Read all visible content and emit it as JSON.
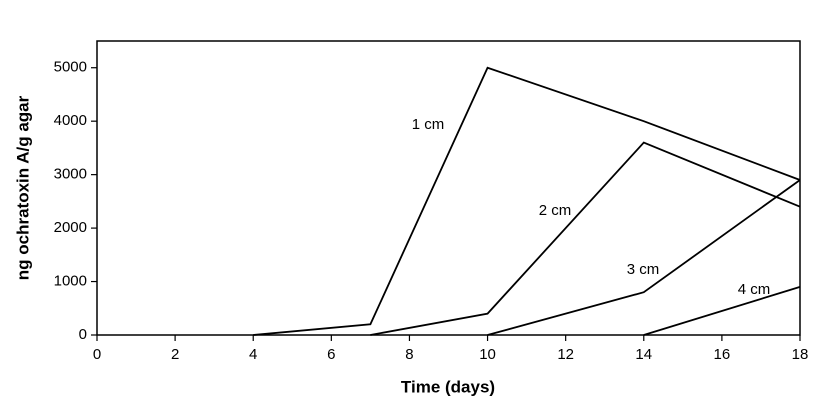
{
  "chart_data": {
    "type": "line",
    "x_label": "Time (days)",
    "y_label": "ng ochratoxin A/g agar",
    "xlim": [
      0,
      18
    ],
    "xticks": [
      0,
      2,
      4,
      6,
      8,
      10,
      12,
      14,
      16,
      18
    ],
    "ylim": [
      0,
      5500
    ],
    "yticks": [
      0,
      1000,
      2000,
      3000,
      4000,
      5000
    ],
    "series": [
      {
        "name": "1 cm",
        "color": "#000000",
        "x": [
          4,
          7,
          10,
          14,
          18
        ],
        "values": [
          0,
          200,
          5000,
          4000,
          2900
        ]
      },
      {
        "name": "2 cm",
        "color": "#000000",
        "x": [
          7,
          10,
          14,
          18
        ],
        "values": [
          0,
          400,
          3600,
          2400
        ]
      },
      {
        "name": "3 cm",
        "color": "#000000",
        "x": [
          10,
          14,
          18
        ],
        "values": [
          0,
          800,
          2900
        ]
      },
      {
        "name": "4 cm",
        "color": "#000000",
        "x": [
          14,
          18
        ],
        "values": [
          0,
          900
        ]
      }
    ]
  }
}
